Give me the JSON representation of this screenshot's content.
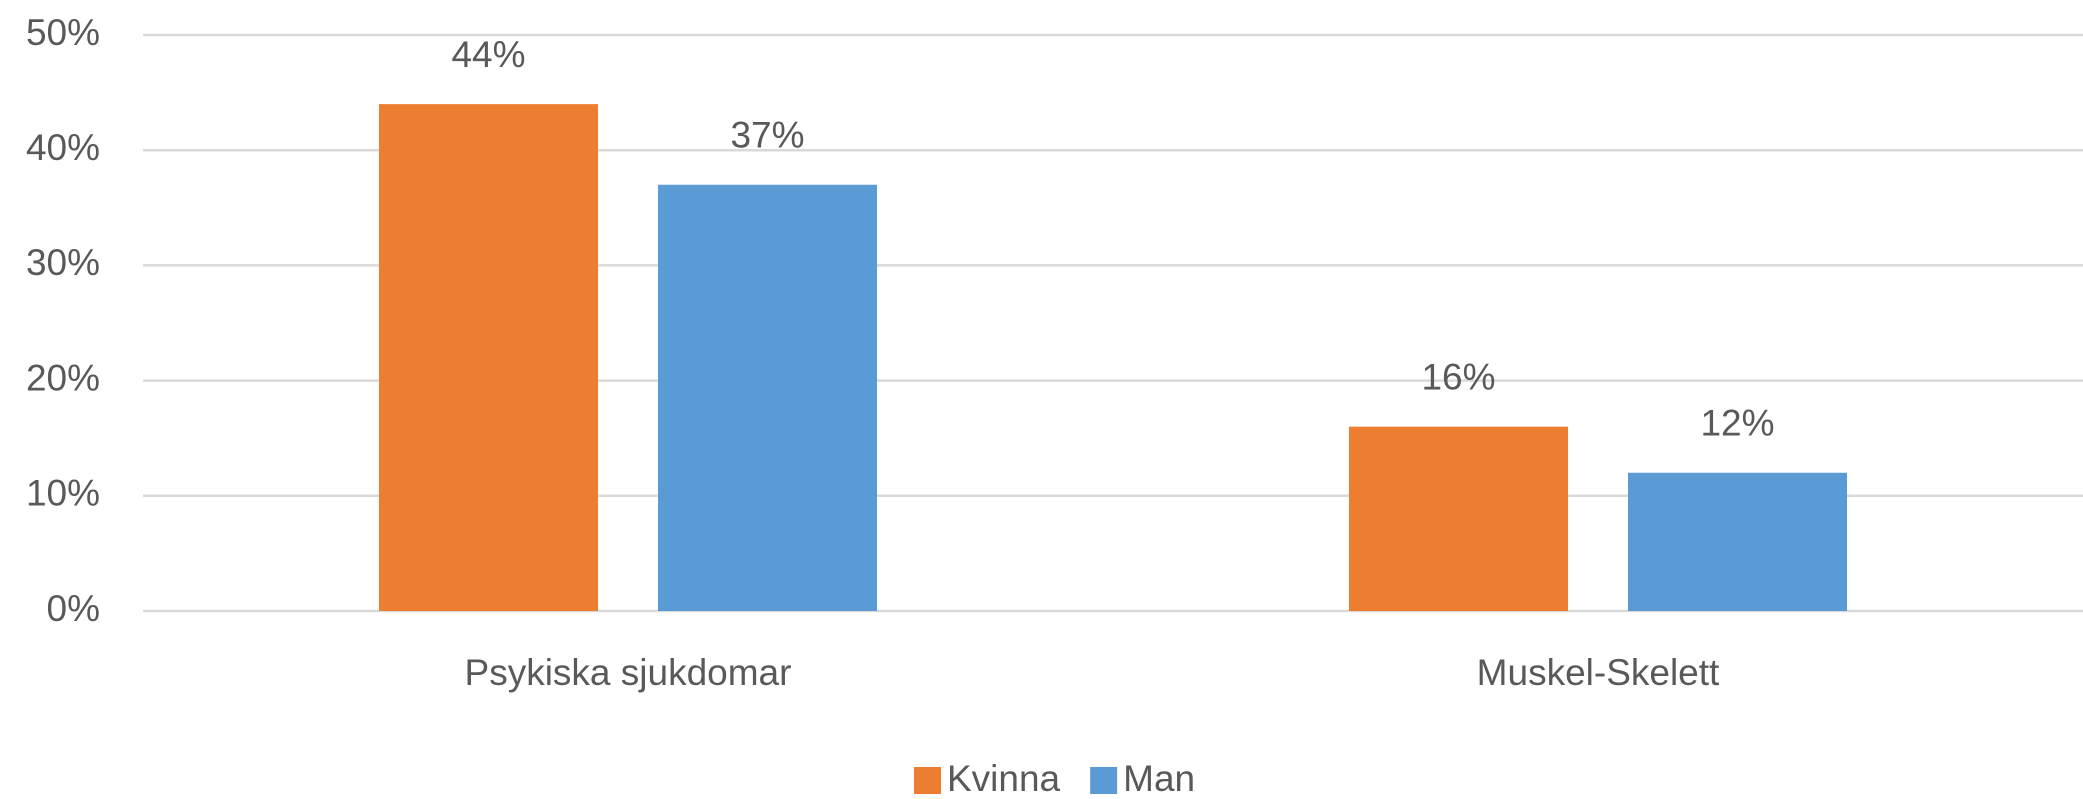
{
  "chart_data": {
    "type": "bar",
    "categories": [
      "Psykiska sjukdomar",
      "Muskel-Skelett"
    ],
    "series": [
      {
        "name": "Kvinna",
        "color": "#ed7d31",
        "values": [
          44,
          16
        ],
        "value_labels": [
          "44%",
          "16%"
        ]
      },
      {
        "name": "Man",
        "color": "#5b9bd5",
        "values": [
          37,
          12
        ],
        "value_labels": [
          "37%",
          "12%"
        ]
      }
    ],
    "ylim": [
      0,
      50
    ],
    "yticks": [
      {
        "value": 0,
        "label": "0%"
      },
      {
        "value": 10,
        "label": "10%"
      },
      {
        "value": 20,
        "label": "20%"
      },
      {
        "value": 30,
        "label": "30%"
      },
      {
        "value": 40,
        "label": "40%"
      },
      {
        "value": 50,
        "label": "50%"
      }
    ],
    "grid": true,
    "legend": "bottom"
  }
}
